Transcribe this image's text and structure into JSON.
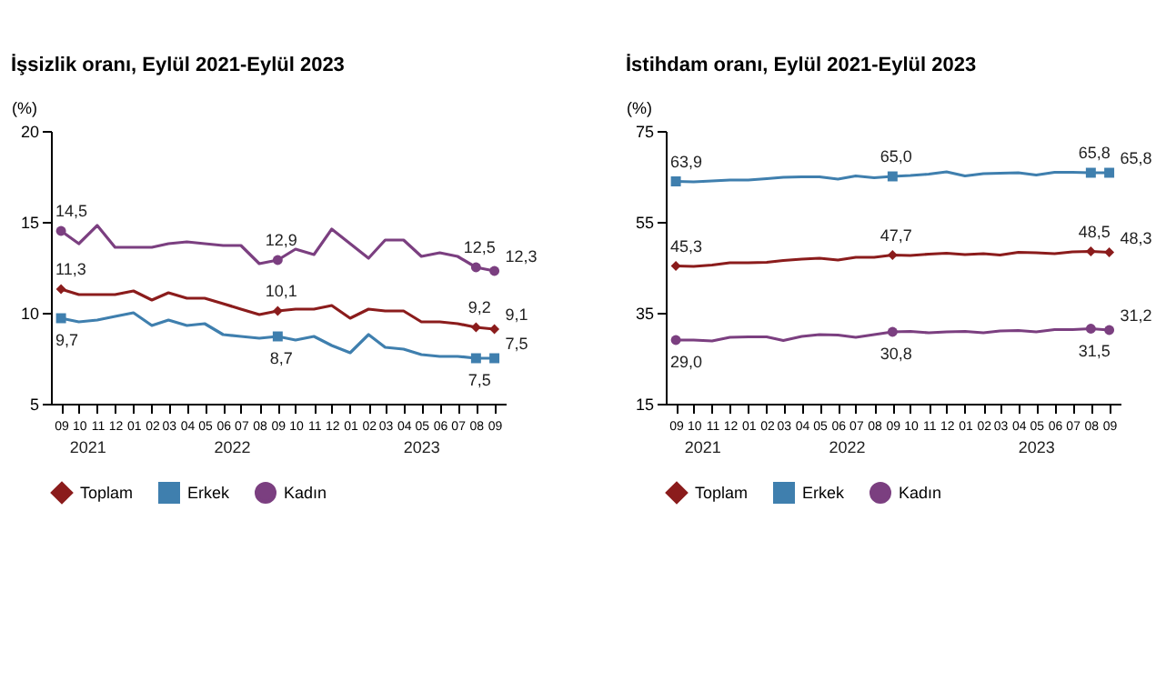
{
  "chart_data": [
    {
      "type": "line",
      "title": "İşsizlik oranı, Eylül 2021-Eylül 2023",
      "ylabel": "(%)",
      "x": [
        "2021-09",
        "2021-10",
        "2021-11",
        "2021-12",
        "2022-01",
        "2022-02",
        "2022-03",
        "2022-04",
        "2022-05",
        "2022-06",
        "2022-07",
        "2022-08",
        "2022-09",
        "2022-10",
        "2022-11",
        "2022-12",
        "2023-01",
        "2023-02",
        "2023-03",
        "2023-04",
        "2023-05",
        "2023-06",
        "2023-07",
        "2023-08",
        "2023-09"
      ],
      "xticks": [
        {
          "value": "2021-09",
          "label": "09"
        },
        {
          "value": "2021-10",
          "label": "10"
        },
        {
          "value": "2021-11",
          "label": "11"
        },
        {
          "value": "2021-12",
          "label": "12"
        },
        {
          "value": "2022-01",
          "label": "01"
        },
        {
          "value": "2022-02",
          "label": "02"
        },
        {
          "value": "2022-03",
          "label": "03"
        },
        {
          "value": "2022-04",
          "label": "04"
        },
        {
          "value": "2022-05",
          "label": "05"
        },
        {
          "value": "2022-06",
          "label": "06"
        },
        {
          "value": "2022-07",
          "label": "07"
        },
        {
          "value": "2022-08",
          "label": "08"
        },
        {
          "value": "2022-09",
          "label": "09"
        },
        {
          "value": "2022-10",
          "label": "10"
        },
        {
          "value": "2022-11",
          "label": "11"
        },
        {
          "value": "2022-12",
          "label": "12"
        },
        {
          "value": "2023-01",
          "label": "01"
        },
        {
          "value": "2023-02",
          "label": "02"
        },
        {
          "value": "2023-03",
          "label": "03"
        },
        {
          "value": "2023-04",
          "label": "04"
        },
        {
          "value": "2023-05",
          "label": "05"
        },
        {
          "value": "2023-06",
          "label": "06"
        },
        {
          "value": "2023-07",
          "label": "07"
        },
        {
          "value": "2023-08",
          "label": "08"
        },
        {
          "value": "2023-09",
          "label": "09"
        }
      ],
      "xlim": [
        "2021-08-15",
        "2023-09-20"
      ],
      "ylim": [
        5,
        20
      ],
      "yticks": [
        5,
        10,
        15,
        20
      ],
      "grid": false,
      "legend": "bottom",
      "annotations": [
        "2021",
        "2022",
        "2023"
      ],
      "series": [
        {
          "name": "Toplam",
          "color": "#8b1c1c",
          "values": [
            11.3,
            11.0,
            11.0,
            11.0,
            11.2,
            10.7,
            11.1,
            10.8,
            10.8,
            10.5,
            10.2,
            9.9,
            10.1,
            10.2,
            10.2,
            10.4,
            9.7,
            10.2,
            10.1,
            10.1,
            9.5,
            9.5,
            9.4,
            9.2,
            9.1
          ],
          "value_labels": [
            "11,3",
            null,
            null,
            null,
            null,
            null,
            null,
            null,
            null,
            null,
            null,
            null,
            "10,1",
            null,
            null,
            null,
            null,
            null,
            null,
            null,
            null,
            null,
            null,
            "9,2",
            "9,1"
          ]
        },
        {
          "name": "Erkek",
          "color": "#3f7fae",
          "values": [
            9.7,
            9.5,
            9.6,
            9.8,
            10.0,
            9.3,
            9.6,
            9.3,
            9.4,
            8.8,
            8.7,
            8.6,
            8.7,
            8.5,
            8.7,
            8.2,
            7.8,
            8.8,
            8.1,
            8.0,
            7.7,
            7.6,
            7.6,
            7.5,
            7.5
          ],
          "value_labels": [
            "9,7",
            null,
            null,
            null,
            null,
            null,
            null,
            null,
            null,
            null,
            null,
            null,
            "8,7",
            null,
            null,
            null,
            null,
            null,
            null,
            null,
            null,
            null,
            null,
            "7,5",
            "7,5"
          ]
        },
        {
          "name": "Kadın",
          "color": "#7b3f80",
          "values": [
            14.5,
            13.8,
            14.8,
            13.6,
            13.6,
            13.6,
            13.8,
            13.9,
            13.8,
            13.7,
            13.7,
            12.7,
            12.9,
            13.5,
            13.2,
            14.6,
            13.8,
            13.0,
            14.0,
            14.0,
            13.1,
            13.3,
            13.1,
            12.5,
            12.3
          ],
          "value_labels": [
            "14,5",
            null,
            null,
            null,
            null,
            null,
            null,
            null,
            null,
            null,
            null,
            null,
            "12,9",
            null,
            null,
            null,
            null,
            null,
            null,
            null,
            null,
            null,
            null,
            "12,5",
            "12,3"
          ]
        }
      ]
    },
    {
      "type": "line",
      "title": "İstihdam oranı, Eylül 2021-Eylül 2023",
      "ylabel": "(%)",
      "x": [
        "2021-09",
        "2021-10",
        "2021-11",
        "2021-12",
        "2022-01",
        "2022-02",
        "2022-03",
        "2022-04",
        "2022-05",
        "2022-06",
        "2022-07",
        "2022-08",
        "2022-09",
        "2022-10",
        "2022-11",
        "2022-12",
        "2023-01",
        "2023-02",
        "2023-03",
        "2023-04",
        "2023-05",
        "2023-06",
        "2023-07",
        "2023-08",
        "2023-09"
      ],
      "xticks": [
        {
          "value": "2021-09",
          "label": "09"
        },
        {
          "value": "2021-10",
          "label": "10"
        },
        {
          "value": "2021-11",
          "label": "11"
        },
        {
          "value": "2021-12",
          "label": "12"
        },
        {
          "value": "2022-01",
          "label": "01"
        },
        {
          "value": "2022-02",
          "label": "02"
        },
        {
          "value": "2022-03",
          "label": "03"
        },
        {
          "value": "2022-04",
          "label": "04"
        },
        {
          "value": "2022-05",
          "label": "05"
        },
        {
          "value": "2022-06",
          "label": "06"
        },
        {
          "value": "2022-07",
          "label": "07"
        },
        {
          "value": "2022-08",
          "label": "08"
        },
        {
          "value": "2022-09",
          "label": "09"
        },
        {
          "value": "2022-10",
          "label": "10"
        },
        {
          "value": "2022-11",
          "label": "11"
        },
        {
          "value": "2022-12",
          "label": "12"
        },
        {
          "value": "2023-01",
          "label": "01"
        },
        {
          "value": "2023-02",
          "label": "02"
        },
        {
          "value": "2023-03",
          "label": "03"
        },
        {
          "value": "2023-04",
          "label": "04"
        },
        {
          "value": "2023-05",
          "label": "05"
        },
        {
          "value": "2023-06",
          "label": "06"
        },
        {
          "value": "2023-07",
          "label": "07"
        },
        {
          "value": "2023-08",
          "label": "08"
        },
        {
          "value": "2023-09",
          "label": "09"
        }
      ],
      "xlim": [
        "2021-08-15",
        "2023-09-20"
      ],
      "ylim": [
        15,
        75
      ],
      "yticks": [
        15,
        35,
        55,
        75
      ],
      "grid": false,
      "legend": "bottom",
      "annotations": [
        "2021",
        "2022",
        "2023"
      ],
      "series": [
        {
          "name": "Toplam",
          "color": "#8b1c1c",
          "values": [
            45.3,
            45.2,
            45.5,
            46.0,
            46.0,
            46.1,
            46.5,
            46.8,
            47.0,
            46.6,
            47.2,
            47.2,
            47.7,
            47.6,
            47.9,
            48.1,
            47.8,
            48.0,
            47.7,
            48.3,
            48.2,
            48.0,
            48.4,
            48.5,
            48.3
          ],
          "value_labels": [
            "45,3",
            null,
            null,
            null,
            null,
            null,
            null,
            null,
            null,
            null,
            null,
            null,
            "47,7",
            null,
            null,
            null,
            null,
            null,
            null,
            null,
            null,
            null,
            null,
            "48,5",
            "48,3"
          ]
        },
        {
          "name": "Erkek",
          "color": "#3f7fae",
          "values": [
            63.9,
            63.8,
            64.0,
            64.2,
            64.2,
            64.5,
            64.8,
            64.9,
            64.9,
            64.4,
            65.1,
            64.7,
            65.0,
            65.2,
            65.5,
            66.0,
            65.1,
            65.6,
            65.7,
            65.8,
            65.3,
            65.9,
            65.9,
            65.8,
            65.8
          ],
          "value_labels": [
            "63,9",
            null,
            null,
            null,
            null,
            null,
            null,
            null,
            null,
            null,
            null,
            null,
            "65,0",
            null,
            null,
            null,
            null,
            null,
            null,
            null,
            null,
            null,
            null,
            "65,8",
            "65,8"
          ]
        },
        {
          "name": "Kadın",
          "color": "#7b3f80",
          "values": [
            29.0,
            29.0,
            28.8,
            29.6,
            29.7,
            29.7,
            28.9,
            29.8,
            30.2,
            30.1,
            29.6,
            30.2,
            30.8,
            30.9,
            30.6,
            30.8,
            30.9,
            30.6,
            31.0,
            31.1,
            30.8,
            31.3,
            31.3,
            31.5,
            31.2
          ],
          "value_labels": [
            "29,0",
            null,
            null,
            null,
            null,
            null,
            null,
            null,
            null,
            null,
            null,
            null,
            "30,8",
            null,
            null,
            null,
            null,
            null,
            null,
            null,
            null,
            null,
            null,
            "31,5",
            "31,2"
          ]
        }
      ]
    }
  ]
}
